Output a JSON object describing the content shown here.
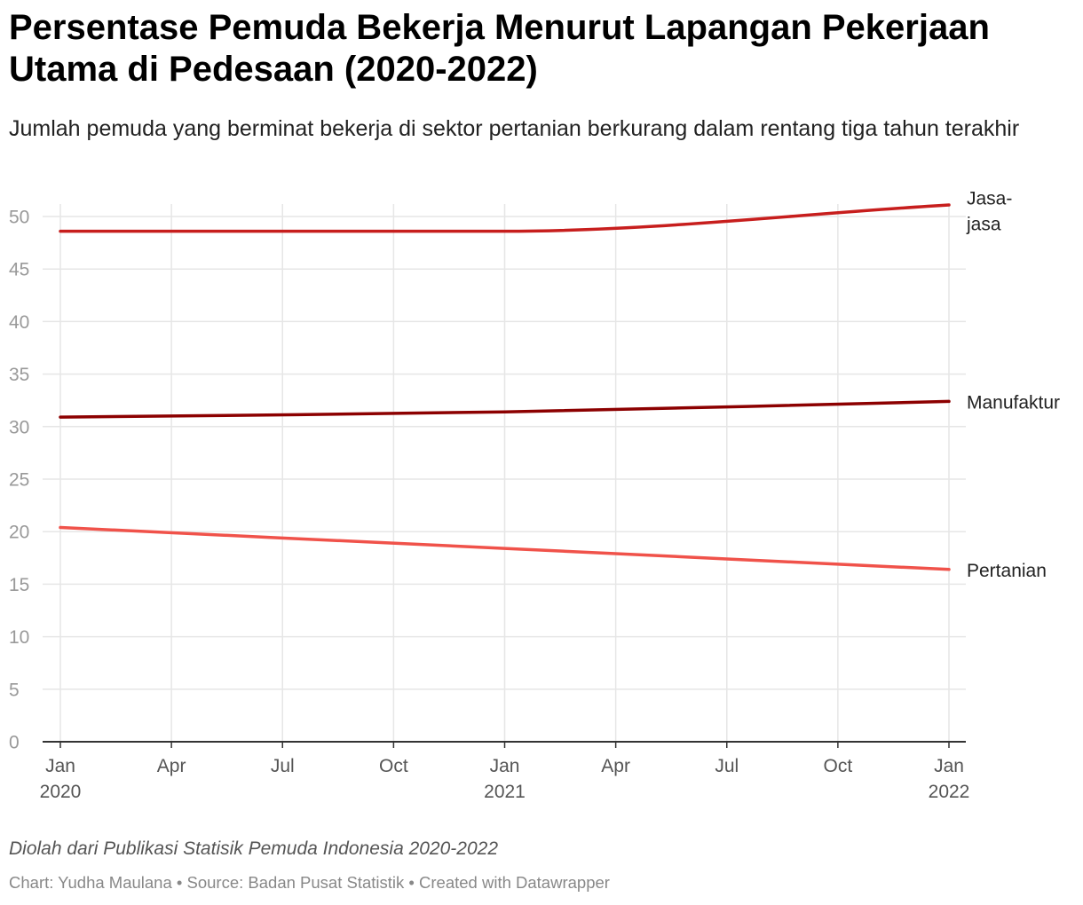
{
  "header": {
    "title": "Persentase Pemuda Bekerja Menurut Lapangan Pekerjaan Utama di Pedesaan (2020-2022)",
    "subtitle": "Jumlah pemuda yang berminat bekerja di sektor pertanian berkurang dalam rentang tiga tahun terakhir"
  },
  "footer": {
    "note": "Diolah dari Publikasi Statisik Pemuda Indonesia 2020-2022",
    "credits": "Chart: Yudha Maulana • Source: Badan Pusat Statistik • Created with Datawrapper"
  },
  "chart_data": {
    "type": "line",
    "title": "Persentase Pemuda Bekerja Menurut Lapangan Pekerjaan Utama di Pedesaan (2020-2022)",
    "subtitle": "Jumlah pemuda yang berminat bekerja di sektor pertanian berkurang dalam rentang tiga tahun terakhir",
    "xlabel": "",
    "ylabel": "",
    "x_range": [
      "2020-01",
      "2022-01"
    ],
    "ylim": [
      0,
      50
    ],
    "y_ticks": [
      0,
      5,
      10,
      15,
      20,
      25,
      30,
      35,
      40,
      45,
      50
    ],
    "x_ticks": [
      {
        "date": "2020-01",
        "label": "Jan",
        "year": "2020"
      },
      {
        "date": "2020-04",
        "label": "Apr",
        "year": ""
      },
      {
        "date": "2020-07",
        "label": "Jul",
        "year": ""
      },
      {
        "date": "2020-10",
        "label": "Oct",
        "year": ""
      },
      {
        "date": "2021-01",
        "label": "Jan",
        "year": "2021"
      },
      {
        "date": "2021-04",
        "label": "Apr",
        "year": ""
      },
      {
        "date": "2021-07",
        "label": "Jul",
        "year": ""
      },
      {
        "date": "2021-10",
        "label": "Oct",
        "year": ""
      },
      {
        "date": "2022-01",
        "label": "Jan",
        "year": "2022"
      }
    ],
    "grid": true,
    "legend": "direct labels at line ends",
    "series": [
      {
        "name": "Jasa-jasa",
        "label_lines": [
          "Jasa-",
          "jasa"
        ],
        "color": "#c71e1d",
        "x": [
          "2020-01",
          "2021-01",
          "2022-01"
        ],
        "values": [
          48.6,
          48.6,
          51.1
        ]
      },
      {
        "name": "Manufaktur",
        "label_lines": [
          "Manufaktur"
        ],
        "color": "#8c0000",
        "x": [
          "2020-01",
          "2021-01",
          "2022-01"
        ],
        "values": [
          30.9,
          31.4,
          32.4
        ]
      },
      {
        "name": "Pertanian",
        "label_lines": [
          "Pertanian"
        ],
        "color": "#f0524a",
        "x": [
          "2020-01",
          "2021-01",
          "2022-01"
        ],
        "values": [
          20.4,
          18.4,
          16.4
        ]
      }
    ]
  }
}
